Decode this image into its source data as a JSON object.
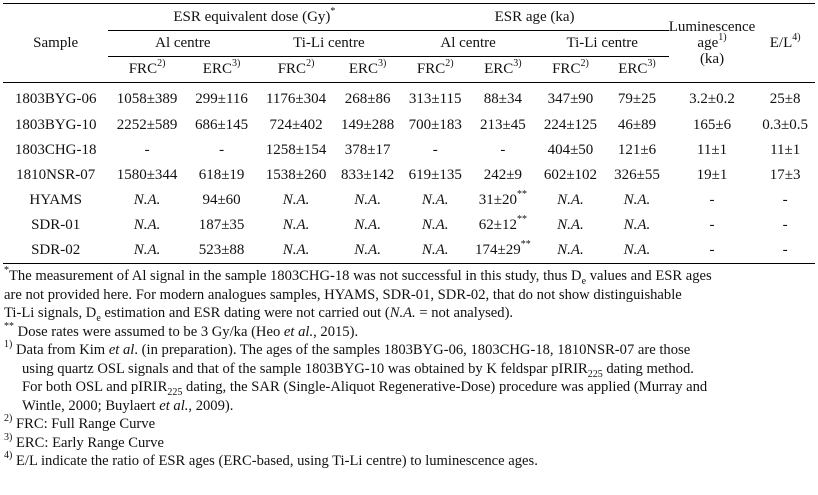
{
  "header": {
    "sample": "Sample",
    "esr_de": "ESR equivalent dose (Gy)",
    "esr_de_mark": "*",
    "esr_age": "ESR age (ka)",
    "lum_line1": "Luminescence",
    "lum_line2": "age",
    "lum_mark": "1)",
    "lum_line3": "(ka)",
    "el": "E/L",
    "el_mark": "4)",
    "al_centre_1": "Al centre",
    "tili_centre_1": "Ti-Li centre",
    "al_centre_2": "Al centre",
    "tili_centre_2": "Ti-Li centre",
    "frc": "FRC",
    "frc_mark": "2)",
    "erc": "ERC",
    "erc_mark": "3)"
  },
  "rows": [
    {
      "sample": "1803BYG-06",
      "de_al_frc": "1058±389",
      "de_al_erc": "299±116",
      "de_ti_frc": "1176±304",
      "de_ti_erc": "268±86",
      "age_al_frc": "313±115",
      "age_al_erc": "88±34",
      "age_al_erc_mark": "",
      "age_ti_frc": "347±90",
      "age_ti_erc": "79±25",
      "lum": "3.2±0.2",
      "el": "25±8"
    },
    {
      "sample": "1803BYG-10",
      "de_al_frc": "2252±589",
      "de_al_erc": "686±145",
      "de_ti_frc": "724±402",
      "de_ti_erc": "149±288",
      "age_al_frc": "700±183",
      "age_al_erc": "213±45",
      "age_al_erc_mark": "",
      "age_ti_frc": "224±125",
      "age_ti_erc": "46±89",
      "lum": "165±6",
      "el": "0.3±0.5"
    },
    {
      "sample": "1803CHG-18",
      "de_al_frc": "-",
      "de_al_erc": "-",
      "de_ti_frc": "1258±154",
      "de_ti_erc": "378±17",
      "age_al_frc": "-",
      "age_al_erc": "-",
      "age_al_erc_mark": "",
      "age_ti_frc": "404±50",
      "age_ti_erc": "121±6",
      "lum": "11±1",
      "el": "11±1"
    },
    {
      "sample": "1810NSR-07",
      "de_al_frc": "1580±344",
      "de_al_erc": "618±19",
      "de_ti_frc": "1538±260",
      "de_ti_erc": "833±142",
      "age_al_frc": "619±135",
      "age_al_erc": "242±9",
      "age_al_erc_mark": "",
      "age_ti_frc": "602±102",
      "age_ti_erc": "326±55",
      "lum": "19±1",
      "el": "17±3"
    },
    {
      "sample": "HYAMS",
      "de_al_frc": "N.A.",
      "de_al_erc": "94±60",
      "de_ti_frc": "N.A.",
      "de_ti_erc": "N.A.",
      "age_al_frc": "N.A.",
      "age_al_erc": "31±20",
      "age_al_erc_mark": "**",
      "age_ti_frc": "N.A.",
      "age_ti_erc": "N.A.",
      "lum": "-",
      "el": "-"
    },
    {
      "sample": "SDR-01",
      "de_al_frc": "N.A.",
      "de_al_erc": "187±35",
      "de_ti_frc": "N.A.",
      "de_ti_erc": "N.A.",
      "age_al_frc": "N.A.",
      "age_al_erc": "62±12",
      "age_al_erc_mark": "**",
      "age_ti_frc": "N.A.",
      "age_ti_erc": "N.A.",
      "lum": "-",
      "el": "-"
    },
    {
      "sample": "SDR-02",
      "de_al_frc": "N.A.",
      "de_al_erc": "523±88",
      "de_ti_frc": "N.A.",
      "de_ti_erc": "N.A.",
      "age_al_frc": "N.A.",
      "age_al_erc": "174±29",
      "age_al_erc_mark": "**",
      "age_ti_frc": "N.A.",
      "age_ti_erc": "N.A.",
      "lum": "-",
      "el": "-"
    }
  ],
  "notes": {
    "n1_mark": "*",
    "n1_a": "The measurement of Al signal in the sample 1803CHG-18 was not successful in this study, thus D",
    "n1_sub": "e",
    "n1_b": " values and ESR ages",
    "n1_c": "are not provided here. For modern analogues samples, HYAMS, SDR-01, SDR-02, that do not show distinguishable",
    "n1_d": "Ti-Li signals, D",
    "n1_d_sub": "e",
    "n1_e": " estimation and ESR dating were not carried out (",
    "n1_e_it": "N.A.",
    "n1_f": " = not analysed).",
    "n2_mark": "**",
    "n2": " Dose rates were assumed to be 3 Gy/ka (Heo ",
    "n2_it": "et al.",
    "n2_b": ", 2015).",
    "n3_mark": "1)",
    "n3_a": " Data from Kim ",
    "n3_it": "et al",
    "n3_b": ". (in preparation). The ages of the samples 1803BYG-06, 1803CHG-18, 1810NSR-07 are those",
    "n3_c": "using quartz OSL signals and that of the sample 1803BYG-10 was obtained by K feldspar pIRIR",
    "n3_c_sub": "225",
    "n3_d": " dating method.",
    "n3_e": "For both OSL and pIRIR",
    "n3_e_sub": "225",
    "n3_f": " dating, the SAR (Single-Aliquot Regenerative-Dose) procedure was applied (Murray and",
    "n3_g": "Wintle, 2000; Buylaert ",
    "n3_g_it": "et al.",
    "n3_h": ", 2009).",
    "n4_mark": "2)",
    "n4": " FRC: Full Range Curve",
    "n5_mark": "3)",
    "n5": " ERC: Early Range Curve",
    "n6_mark": "4)",
    "n6": " E/L indicate the ratio of ESR ages (ERC-based, using Ti-Li centre) to luminescence ages."
  }
}
